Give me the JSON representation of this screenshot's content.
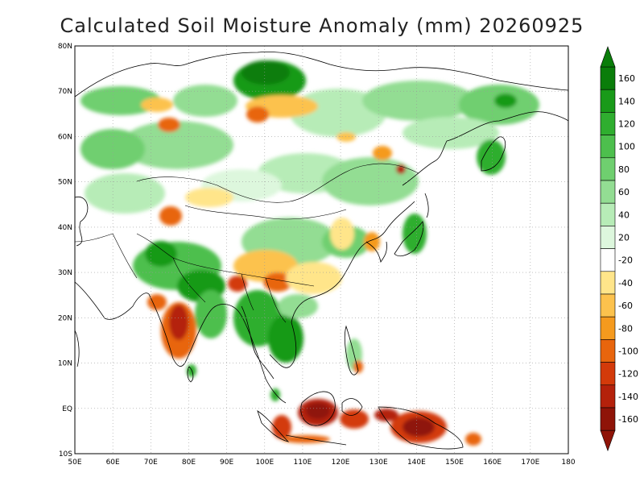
{
  "title": "Calculated Soil Moisture Anomaly (mm) 20260925",
  "map": {
    "lon_range": [
      50,
      180
    ],
    "lat_range": [
      -10,
      80
    ],
    "lon_ticks": [
      "50E",
      "60E",
      "70E",
      "80E",
      "90E",
      "100E",
      "110E",
      "120E",
      "130E",
      "140E",
      "150E",
      "160E",
      "170E",
      "180"
    ],
    "lat_ticks": [
      "10S",
      "EQ",
      "10N",
      "20N",
      "30N",
      "40N",
      "50N",
      "60N",
      "70N",
      "80N"
    ],
    "grid": true
  },
  "colorbar": {
    "labels": [
      "160",
      "140",
      "120",
      "100",
      "80",
      "60",
      "40",
      "20",
      "-20",
      "-40",
      "-60",
      "-80",
      "-100",
      "-120",
      "-140",
      "-160"
    ],
    "colors": [
      "#0a7d0a",
      "#199a19",
      "#2fae2f",
      "#4dbf4d",
      "#6fcf6f",
      "#93dd93",
      "#b7ecb7",
      "#ddf7dd",
      "#ffffff",
      "#ffe58a",
      "#fcc24d",
      "#f59a1e",
      "#e8650d",
      "#d33a0a",
      "#b4210b",
      "#8f1408"
    ]
  }
}
